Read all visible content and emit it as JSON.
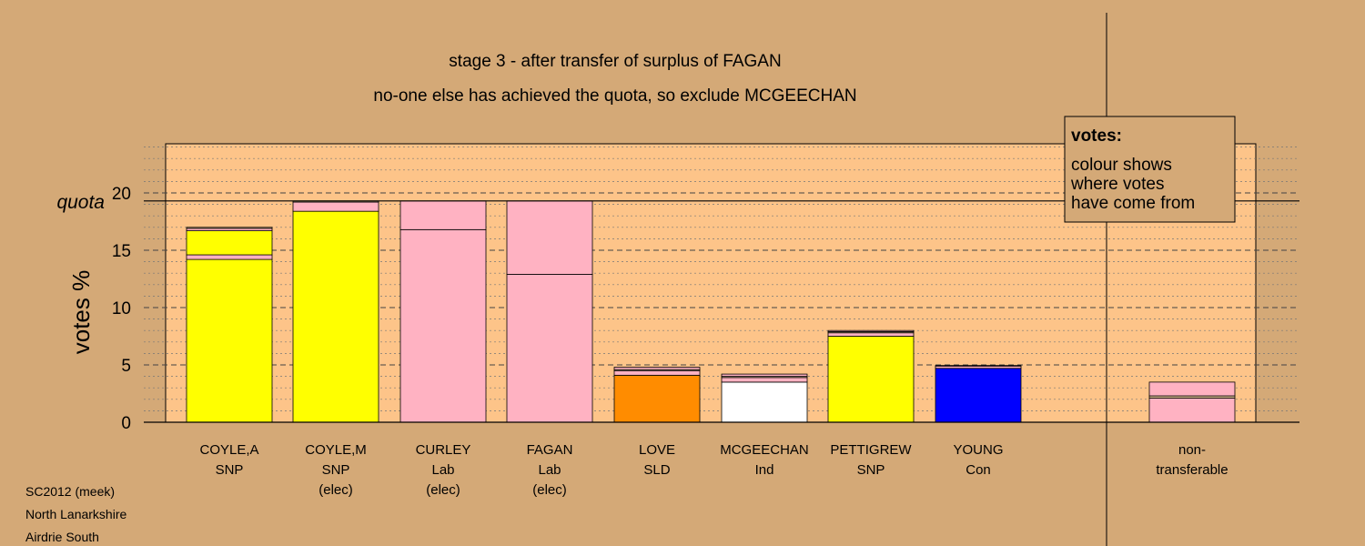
{
  "chart_data": {
    "type": "bar",
    "title": "stage 3 - after transfer of surplus of FAGAN",
    "subtitle": "no-one else has achieved the quota, so exclude MCGEECHAN",
    "ylabel": "votes %",
    "ylim": [
      0,
      24
    ],
    "yticks": [
      0,
      5,
      10,
      15,
      20
    ],
    "quota_label": "quota",
    "quota": 19.3,
    "grid": "dotted minor every 1, dashed major every 5",
    "legend": {
      "position": "top-right",
      "title": "votes:",
      "lines": [
        "colour shows",
        "where votes",
        "have come from"
      ]
    },
    "colors": {
      "SNP": "#ffff00",
      "Lab": "#ffb2c2",
      "SLD": "#ff8c00",
      "Ind": "#ffffff",
      "Con": "#0000ff",
      "Lab_transfer": "#ffb2c2",
      "other": "#d2b48c",
      "plot_bg": "#fdc489",
      "page_bg": "#d4a977"
    },
    "candidates": [
      {
        "name": "COYLE,A",
        "party": "SNP",
        "note": "",
        "segments": [
          {
            "from": "SNP",
            "value": 14.2
          },
          {
            "from": "Lab",
            "value": 0.4
          },
          {
            "from": "SNP",
            "value": 2.1
          },
          {
            "from": "Lab",
            "value": 0.2
          },
          {
            "from": "other",
            "value": 0.1
          }
        ]
      },
      {
        "name": "COYLE,M",
        "party": "SNP",
        "note": "(elec)",
        "segments": [
          {
            "from": "SNP",
            "value": 18.4
          },
          {
            "from": "Lab",
            "value": 0.8
          },
          {
            "from": "other",
            "value": 0.1
          }
        ]
      },
      {
        "name": "CURLEY",
        "party": "Lab",
        "note": "(elec)",
        "segments": [
          {
            "from": "Lab",
            "value": 16.8
          },
          {
            "from": "Lab",
            "value": 2.5
          }
        ]
      },
      {
        "name": "FAGAN",
        "party": "Lab",
        "note": "(elec)",
        "segments": [
          {
            "from": "Lab",
            "value": 12.9
          },
          {
            "from": "Lab",
            "value": 6.4
          }
        ]
      },
      {
        "name": "LOVE",
        "party": "SLD",
        "note": "",
        "segments": [
          {
            "from": "SLD",
            "value": 4.1
          },
          {
            "from": "Lab",
            "value": 0.4
          },
          {
            "from": "other",
            "value": 0.1
          },
          {
            "from": "Lab",
            "value": 0.2
          }
        ]
      },
      {
        "name": "MCGEECHAN",
        "party": "Ind",
        "note": "",
        "segments": [
          {
            "from": "Ind",
            "value": 3.5
          },
          {
            "from": "Lab",
            "value": 0.4
          },
          {
            "from": "other",
            "value": 0.1
          },
          {
            "from": "Lab",
            "value": 0.2
          }
        ]
      },
      {
        "name": "PETTIGREW",
        "party": "SNP",
        "note": "",
        "segments": [
          {
            "from": "SNP",
            "value": 7.5
          },
          {
            "from": "Lab",
            "value": 0.3
          },
          {
            "from": "other",
            "value": 0.1
          },
          {
            "from": "Lab",
            "value": 0.1
          }
        ]
      },
      {
        "name": "YOUNG",
        "party": "Con",
        "note": "",
        "segments": [
          {
            "from": "Con",
            "value": 4.7
          },
          {
            "from": "Lab",
            "value": 0.2
          },
          {
            "from": "other",
            "value": 0.05
          }
        ]
      }
    ],
    "non_transferable": {
      "label_lines": [
        "non-",
        "transferable"
      ],
      "segments": [
        {
          "from": "Lab",
          "value": 2.1
        },
        {
          "from": "other",
          "value": 0.2
        },
        {
          "from": "Lab",
          "value": 1.2
        }
      ]
    }
  },
  "footer": {
    "line1": "SC2012 (meek)",
    "line2": "North Lanarkshire",
    "line3": "Airdrie South"
  }
}
